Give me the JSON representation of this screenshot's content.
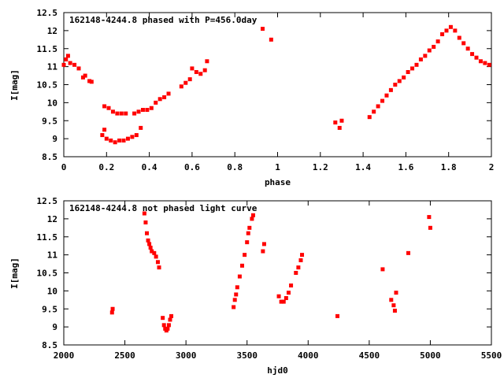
{
  "chart_data": [
    {
      "type": "scatter",
      "title": "162148-4244.8 phased with P=456.0day",
      "xlabel": "phase",
      "ylabel": "I[mag]",
      "xlim": [
        0,
        2
      ],
      "ylim": [
        12.5,
        8.5
      ],
      "y_inverted": true,
      "xticks": [
        "0",
        "0.2",
        "0.4",
        "0.6",
        "0.8",
        "1",
        "1.2",
        "1.4",
        "1.6",
        "1.8",
        "2"
      ],
      "yticks": [
        "8.5",
        "9",
        "9.5",
        "10",
        "10.5",
        "11",
        "11.5",
        "12",
        "12.5"
      ],
      "marker_color": "#ff0000",
      "series": [
        {
          "points": [
            [
              0.0,
              11.05
            ],
            [
              0.01,
              11.2
            ],
            [
              0.02,
              11.3
            ],
            [
              0.03,
              11.1
            ],
            [
              0.05,
              11.05
            ],
            [
              0.07,
              10.95
            ],
            [
              0.09,
              10.7
            ],
            [
              0.1,
              10.75
            ],
            [
              0.12,
              10.6
            ],
            [
              0.13,
              10.58
            ],
            [
              0.18,
              9.1
            ],
            [
              0.19,
              9.25
            ],
            [
              0.2,
              9.0
            ],
            [
              0.22,
              8.95
            ],
            [
              0.24,
              8.9
            ],
            [
              0.26,
              8.95
            ],
            [
              0.28,
              8.95
            ],
            [
              0.3,
              9.0
            ],
            [
              0.32,
              9.05
            ],
            [
              0.34,
              9.1
            ],
            [
              0.36,
              9.3
            ],
            [
              0.19,
              9.9
            ],
            [
              0.21,
              9.85
            ],
            [
              0.23,
              9.75
            ],
            [
              0.25,
              9.7
            ],
            [
              0.27,
              9.7
            ],
            [
              0.29,
              9.7
            ],
            [
              0.33,
              9.7
            ],
            [
              0.35,
              9.75
            ],
            [
              0.37,
              9.8
            ],
            [
              0.39,
              9.8
            ],
            [
              0.41,
              9.85
            ],
            [
              0.43,
              10.0
            ],
            [
              0.45,
              10.1
            ],
            [
              0.47,
              10.15
            ],
            [
              0.49,
              10.25
            ],
            [
              0.55,
              10.45
            ],
            [
              0.57,
              10.55
            ],
            [
              0.59,
              10.65
            ],
            [
              0.6,
              10.95
            ],
            [
              0.62,
              10.85
            ],
            [
              0.64,
              10.8
            ],
            [
              0.66,
              10.9
            ],
            [
              0.67,
              11.15
            ],
            [
              0.93,
              12.05
            ],
            [
              0.97,
              11.75
            ],
            [
              1.27,
              9.45
            ],
            [
              1.29,
              9.3
            ],
            [
              1.3,
              9.5
            ],
            [
              1.43,
              9.6
            ],
            [
              1.45,
              9.75
            ],
            [
              1.47,
              9.9
            ],
            [
              1.49,
              10.05
            ],
            [
              1.51,
              10.2
            ],
            [
              1.53,
              10.35
            ],
            [
              1.55,
              10.5
            ],
            [
              1.57,
              10.6
            ],
            [
              1.59,
              10.7
            ],
            [
              1.61,
              10.85
            ],
            [
              1.63,
              10.95
            ],
            [
              1.65,
              11.05
            ],
            [
              1.67,
              11.2
            ],
            [
              1.69,
              11.3
            ],
            [
              1.71,
              11.45
            ],
            [
              1.73,
              11.55
            ],
            [
              1.75,
              11.7
            ],
            [
              1.77,
              11.9
            ],
            [
              1.79,
              12.0
            ],
            [
              1.81,
              12.1
            ],
            [
              1.83,
              12.0
            ],
            [
              1.85,
              11.8
            ],
            [
              1.87,
              11.65
            ],
            [
              1.89,
              11.5
            ],
            [
              1.91,
              11.35
            ],
            [
              1.93,
              11.25
            ],
            [
              1.95,
              11.15
            ],
            [
              1.97,
              11.1
            ],
            [
              1.99,
              11.05
            ]
          ]
        }
      ]
    },
    {
      "type": "scatter",
      "title": "162148-4244.8 not phased light curve",
      "xlabel": "hjd0",
      "ylabel": "I[mag]",
      "xlim": [
        2000,
        5500
      ],
      "ylim": [
        12.5,
        8.5
      ],
      "y_inverted": true,
      "xticks": [
        "2000",
        "2500",
        "3000",
        "3500",
        "4000",
        "4500",
        "5000",
        "5500"
      ],
      "yticks": [
        "8.5",
        "9",
        "9.5",
        "10",
        "10.5",
        "11",
        "11.5",
        "12",
        "12.5"
      ],
      "marker_color": "#ff0000",
      "series": [
        {
          "points": [
            [
              2395,
              9.4
            ],
            [
              2400,
              9.5
            ],
            [
              2660,
              12.15
            ],
            [
              2670,
              11.9
            ],
            [
              2680,
              11.6
            ],
            [
              2690,
              11.4
            ],
            [
              2700,
              11.3
            ],
            [
              2710,
              11.2
            ],
            [
              2720,
              11.1
            ],
            [
              2740,
              11.05
            ],
            [
              2755,
              10.95
            ],
            [
              2770,
              10.8
            ],
            [
              2780,
              10.65
            ],
            [
              2810,
              9.25
            ],
            [
              2820,
              9.05
            ],
            [
              2830,
              8.95
            ],
            [
              2840,
              8.9
            ],
            [
              2850,
              8.95
            ],
            [
              2860,
              9.05
            ],
            [
              2870,
              9.2
            ],
            [
              2880,
              9.3
            ],
            [
              3390,
              9.55
            ],
            [
              3400,
              9.75
            ],
            [
              3410,
              9.9
            ],
            [
              3420,
              10.1
            ],
            [
              3440,
              10.4
            ],
            [
              3460,
              10.7
            ],
            [
              3480,
              11.0
            ],
            [
              3500,
              11.35
            ],
            [
              3510,
              11.6
            ],
            [
              3520,
              11.75
            ],
            [
              3540,
              12.0
            ],
            [
              3550,
              12.1
            ],
            [
              3630,
              11.1
            ],
            [
              3640,
              11.3
            ],
            [
              3760,
              9.85
            ],
            [
              3780,
              9.7
            ],
            [
              3800,
              9.7
            ],
            [
              3820,
              9.8
            ],
            [
              3840,
              9.95
            ],
            [
              3860,
              10.15
            ],
            [
              3900,
              10.5
            ],
            [
              3920,
              10.65
            ],
            [
              3940,
              10.85
            ],
            [
              3950,
              11.0
            ],
            [
              4240,
              9.3
            ],
            [
              4610,
              10.6
            ],
            [
              4680,
              9.75
            ],
            [
              4700,
              9.6
            ],
            [
              4710,
              9.45
            ],
            [
              4720,
              9.95
            ],
            [
              4820,
              11.05
            ],
            [
              4990,
              12.05
            ],
            [
              5000,
              11.75
            ]
          ]
        }
      ]
    }
  ]
}
